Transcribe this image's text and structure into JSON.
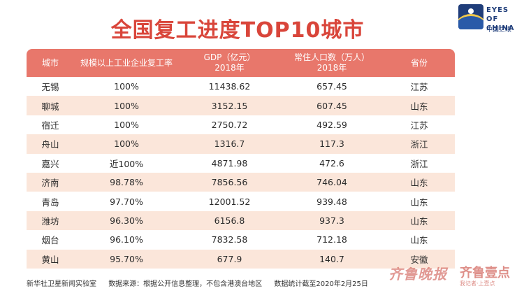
{
  "title": "全国复工进度TOP10城市",
  "logo": {
    "brand_line1": "EYES OF",
    "brand_line2": "CHINA",
    "cn": "中国之眼"
  },
  "table": {
    "headers": [
      {
        "line1": "城市",
        "line2": ""
      },
      {
        "line1": "规模以上工业企业复工率",
        "line2": ""
      },
      {
        "line1": "GDP（亿元）",
        "line2": "2018年"
      },
      {
        "line1": "常住人口数（万人）",
        "line2": "2018年"
      },
      {
        "line1": "省份",
        "line2": ""
      }
    ],
    "rows": [
      {
        "city": "无锡",
        "rate": "100%",
        "gdp": "11438.62",
        "pop": "657.45",
        "province": "江苏"
      },
      {
        "city": "聊城",
        "rate": "100%",
        "gdp": "3152.15",
        "pop": "607.45",
        "province": "山东"
      },
      {
        "city": "宿迁",
        "rate": "100%",
        "gdp": "2750.72",
        "pop": "492.59",
        "province": "江苏"
      },
      {
        "city": "舟山",
        "rate": "100%",
        "gdp": "1316.7",
        "pop": "117.3",
        "province": "浙江"
      },
      {
        "city": "嘉兴",
        "rate": "近100%",
        "gdp": "4871.98",
        "pop": "472.6",
        "province": "浙江"
      },
      {
        "city": "济南",
        "rate": "98.78%",
        "gdp": "7856.56",
        "pop": "746.04",
        "province": "山东"
      },
      {
        "city": "青岛",
        "rate": "97.70%",
        "gdp": "12001.52",
        "pop": "939.48",
        "province": "山东"
      },
      {
        "city": "潍坊",
        "rate": "96.30%",
        "gdp": "6156.8",
        "pop": "937.3",
        "province": "山东"
      },
      {
        "city": "烟台",
        "rate": "96.10%",
        "gdp": "7832.58",
        "pop": "712.18",
        "province": "山东"
      },
      {
        "city": "黄山",
        "rate": "95.70%",
        "gdp": "677.9",
        "pop": "140.7",
        "province": "安徽"
      }
    ]
  },
  "footer": {
    "source_lab": "新华社卫星新闻实验室",
    "data_source": "数据来源：根据公开信息整理，不包含港澳台地区",
    "cutoff": "数据统计截至2020年2月25日"
  },
  "watermark": {
    "paper": "齐鲁晚报",
    "app": "齐鲁壹点",
    "reporter": "我记者·上壹点"
  },
  "colors": {
    "title": "#d9453a",
    "header_bg": "#e8776b",
    "stripe": "#fbe6da"
  }
}
